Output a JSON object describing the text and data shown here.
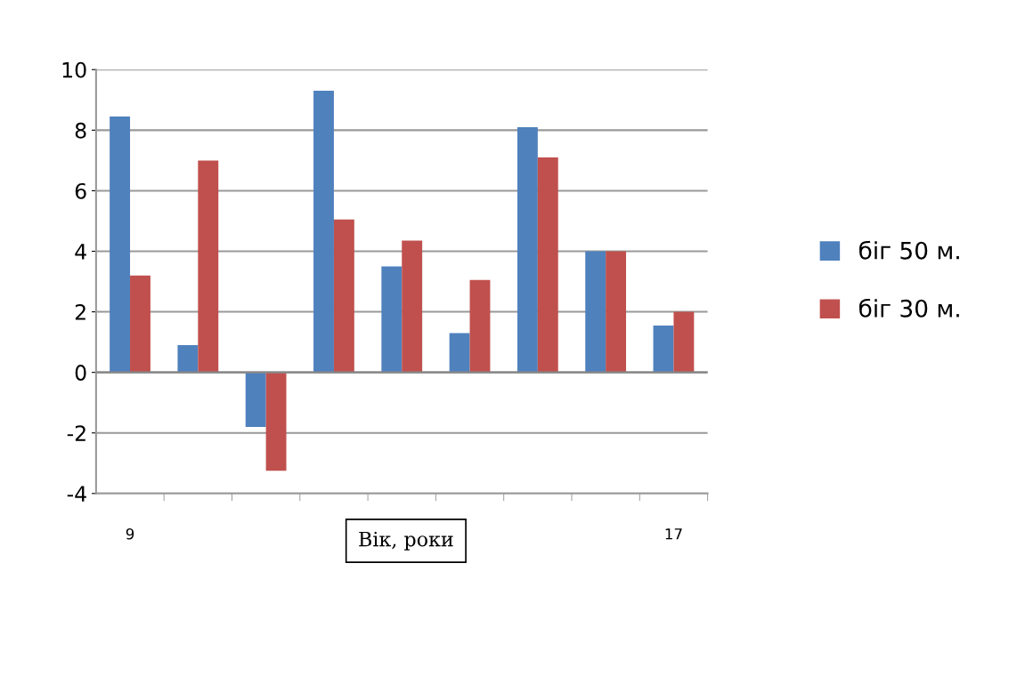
{
  "chart_data": {
    "type": "bar",
    "xlabel": "Вік, роки",
    "categories": [
      "9",
      null,
      null,
      null,
      null,
      null,
      null,
      null,
      "17"
    ],
    "series": [
      {
        "name": "біг 50 м.",
        "color": "#4f81bd",
        "values": [
          8.45,
          0.9,
          -1.8,
          9.3,
          3.5,
          1.3,
          8.1,
          4.0,
          1.55
        ]
      },
      {
        "name": "біг 30 м.",
        "color": "#c0504d",
        "values": [
          3.2,
          7.0,
          -3.25,
          5.05,
          4.35,
          3.05,
          7.1,
          4.0,
          2.0
        ]
      }
    ],
    "ylim": [
      -4,
      10
    ],
    "yticks": [
      -4,
      -2,
      0,
      2,
      4,
      6,
      8,
      10
    ],
    "grid": "y",
    "legend": "right"
  }
}
